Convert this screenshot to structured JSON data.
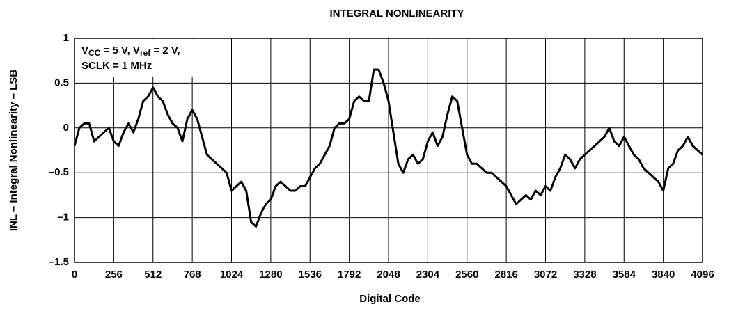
{
  "chart_data": {
    "type": "line",
    "title": "INTEGRAL NONLINEARITY",
    "xlabel": "Digital Code",
    "ylabel": "INL – Integral Nonlinearity – LSB",
    "annotation": [
      [
        {
          "text": "V"
        },
        {
          "text": "CC",
          "sub": true
        },
        {
          "text": " = 5 V, V"
        },
        {
          "text": "ref",
          "sub": true
        },
        {
          "text": " = 2 V,"
        }
      ],
      [
        {
          "text": "SCLK = 1 MHz"
        }
      ]
    ],
    "xlim": [
      0,
      4096
    ],
    "xticks": [
      0,
      256,
      512,
      768,
      1024,
      1280,
      1536,
      1792,
      2048,
      2304,
      2560,
      2816,
      3072,
      3328,
      3584,
      3840,
      4096
    ],
    "ylim": [
      -1.5,
      1
    ],
    "yticks": [
      {
        "value": -1.5,
        "label": "–1.5"
      },
      {
        "value": -1,
        "label": "–1"
      },
      {
        "value": -0.5,
        "label": "–0.5"
      },
      0,
      0.5,
      1
    ],
    "grid": true,
    "series": [
      {
        "color": "#000000",
        "x": [
          0,
          32,
          64,
          96,
          128,
          160,
          192,
          224,
          256,
          288,
          320,
          352,
          384,
          416,
          448,
          480,
          512,
          544,
          576,
          608,
          640,
          672,
          704,
          736,
          768,
          800,
          832,
          864,
          896,
          928,
          960,
          992,
          1024,
          1056,
          1088,
          1120,
          1152,
          1184,
          1216,
          1248,
          1280,
          1312,
          1344,
          1376,
          1408,
          1440,
          1472,
          1504,
          1536,
          1568,
          1600,
          1632,
          1664,
          1696,
          1728,
          1760,
          1792,
          1824,
          1856,
          1888,
          1920,
          1952,
          1984,
          2016,
          2048,
          2080,
          2112,
          2144,
          2176,
          2208,
          2240,
          2272,
          2304,
          2336,
          2368,
          2400,
          2432,
          2464,
          2496,
          2528,
          2560,
          2592,
          2624,
          2656,
          2688,
          2720,
          2752,
          2784,
          2816,
          2848,
          2880,
          2912,
          2944,
          2976,
          3008,
          3040,
          3072,
          3104,
          3136,
          3168,
          3200,
          3232,
          3264,
          3296,
          3328,
          3360,
          3392,
          3424,
          3456,
          3488,
          3520,
          3552,
          3584,
          3616,
          3648,
          3680,
          3712,
          3744,
          3776,
          3808,
          3840,
          3872,
          3904,
          3936,
          3968,
          4000,
          4032,
          4064,
          4096
        ],
        "values": [
          -0.2,
          0.0,
          0.05,
          0.05,
          -0.15,
          -0.1,
          -0.05,
          0.0,
          -0.15,
          -0.2,
          -0.05,
          0.05,
          -0.05,
          0.1,
          0.3,
          0.35,
          0.45,
          0.35,
          0.3,
          0.15,
          0.05,
          0.0,
          -0.15,
          0.1,
          0.2,
          0.1,
          -0.1,
          -0.3,
          -0.35,
          -0.4,
          -0.45,
          -0.5,
          -0.7,
          -0.65,
          -0.6,
          -0.7,
          -1.05,
          -1.1,
          -0.95,
          -0.85,
          -0.8,
          -0.65,
          -0.6,
          -0.65,
          -0.7,
          -0.7,
          -0.65,
          -0.65,
          -0.55,
          -0.45,
          -0.4,
          -0.3,
          -0.2,
          0.0,
          0.05,
          0.05,
          0.1,
          0.3,
          0.35,
          0.3,
          0.3,
          0.65,
          0.65,
          0.5,
          0.3,
          -0.05,
          -0.4,
          -0.5,
          -0.35,
          -0.3,
          -0.4,
          -0.35,
          -0.15,
          -0.05,
          -0.2,
          -0.1,
          0.15,
          0.35,
          0.3,
          0.0,
          -0.3,
          -0.4,
          -0.4,
          -0.45,
          -0.5,
          -0.5,
          -0.55,
          -0.6,
          -0.65,
          -0.75,
          -0.85,
          -0.8,
          -0.75,
          -0.8,
          -0.7,
          -0.75,
          -0.65,
          -0.7,
          -0.55,
          -0.45,
          -0.3,
          -0.35,
          -0.45,
          -0.35,
          -0.3,
          -0.25,
          -0.2,
          -0.15,
          -0.1,
          0.0,
          -0.15,
          -0.2,
          -0.1,
          -0.2,
          -0.3,
          -0.35,
          -0.45,
          -0.5,
          -0.55,
          -0.6,
          -0.7,
          -0.45,
          -0.4,
          -0.25,
          -0.2,
          -0.1,
          -0.2,
          -0.25,
          -0.3
        ]
      }
    ]
  }
}
